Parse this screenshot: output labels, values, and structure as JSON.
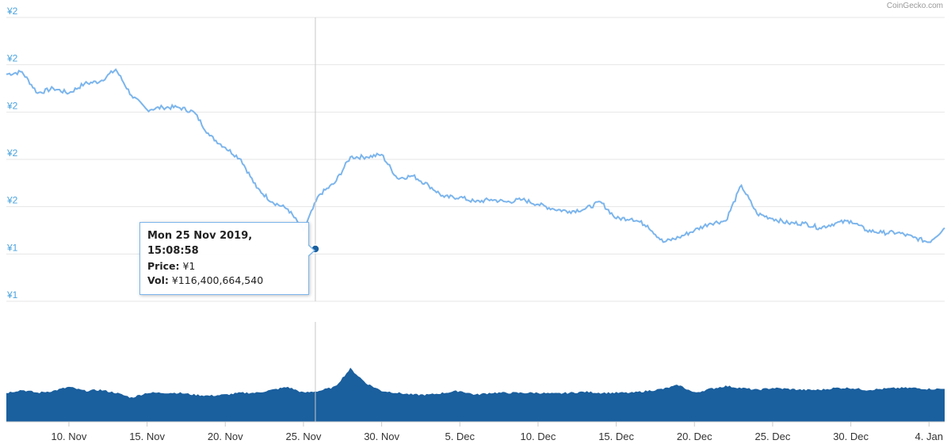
{
  "credit": "CoinGecko.com",
  "tooltip": {
    "date": "Mon 25 Nov 2019, 15:08:58",
    "price_label": "Price:",
    "price_value": "¥1",
    "vol_label": "Vol:",
    "vol_value": "¥116,400,664,540"
  },
  "colors": {
    "price_line": "#7cb5ec",
    "volume": "#1a5f9e",
    "marker": "#1a5f9e",
    "grid": "#e6e6e6",
    "ytick": "#4aa3df"
  },
  "chart_data": {
    "type": "line",
    "title": "",
    "xlabel": "",
    "ylabel": "",
    "grid": true,
    "y_tick_labels": [
      "¥2",
      "¥2",
      "¥2",
      "¥2",
      "¥2",
      "¥1",
      "¥1"
    ],
    "x_tick_labels": [
      "10. Nov",
      "15. Nov",
      "20. Nov",
      "25. Nov",
      "30. Nov",
      "5. Dec",
      "10. Dec",
      "15. Dec",
      "20. Dec",
      "25. Dec",
      "30. Dec",
      "4. Jan"
    ],
    "x_range": [
      "2019-11-06",
      "2020-01-05"
    ],
    "price_ylim": [
      1.0,
      2.2
    ],
    "series": [
      {
        "kind": "price",
        "x": [
          "2019-11-06",
          "2019-11-07",
          "2019-11-08",
          "2019-11-09",
          "2019-11-10",
          "2019-11-11",
          "2019-11-12",
          "2019-11-13",
          "2019-11-14",
          "2019-11-15",
          "2019-11-16",
          "2019-11-17",
          "2019-11-18",
          "2019-11-19",
          "2019-11-20",
          "2019-11-21",
          "2019-11-22",
          "2019-11-23",
          "2019-11-24",
          "2019-11-25",
          "2019-11-26",
          "2019-11-27",
          "2019-11-28",
          "2019-11-29",
          "2019-11-30",
          "2019-12-01",
          "2019-12-02",
          "2019-12-03",
          "2019-12-04",
          "2019-12-05",
          "2019-12-06",
          "2019-12-07",
          "2019-12-08",
          "2019-12-09",
          "2019-12-10",
          "2019-12-11",
          "2019-12-12",
          "2019-12-13",
          "2019-12-14",
          "2019-12-15",
          "2019-12-16",
          "2019-12-17",
          "2019-12-18",
          "2019-12-19",
          "2019-12-20",
          "2019-12-21",
          "2019-12-22",
          "2019-12-23",
          "2019-12-24",
          "2019-12-25",
          "2019-12-26",
          "2019-12-27",
          "2019-12-28",
          "2019-12-29",
          "2019-12-30",
          "2019-12-31",
          "2020-01-01",
          "2020-01-02",
          "2020-01-03",
          "2020-01-04",
          "2020-01-05"
        ],
        "values": [
          1.96,
          1.97,
          1.88,
          1.9,
          1.88,
          1.92,
          1.93,
          1.98,
          1.87,
          1.81,
          1.82,
          1.82,
          1.8,
          1.7,
          1.65,
          1.6,
          1.48,
          1.42,
          1.39,
          1.3,
          1.45,
          1.5,
          1.61,
          1.61,
          1.62,
          1.52,
          1.53,
          1.49,
          1.44,
          1.44,
          1.42,
          1.43,
          1.42,
          1.43,
          1.41,
          1.39,
          1.38,
          1.39,
          1.42,
          1.35,
          1.35,
          1.32,
          1.25,
          1.27,
          1.3,
          1.33,
          1.34,
          1.49,
          1.37,
          1.35,
          1.33,
          1.33,
          1.31,
          1.33,
          1.34,
          1.3,
          1.29,
          1.29,
          1.27,
          1.25,
          1.31
        ]
      },
      {
        "kind": "volume",
        "x": [
          "2019-11-06",
          "2019-11-07",
          "2019-11-08",
          "2019-11-09",
          "2019-11-10",
          "2019-11-11",
          "2019-11-12",
          "2019-11-13",
          "2019-11-14",
          "2019-11-15",
          "2019-11-16",
          "2019-11-17",
          "2019-11-18",
          "2019-11-19",
          "2019-11-20",
          "2019-11-21",
          "2019-11-22",
          "2019-11-23",
          "2019-11-24",
          "2019-11-25",
          "2019-11-26",
          "2019-11-27",
          "2019-11-28",
          "2019-11-29",
          "2019-11-30",
          "2019-12-01",
          "2019-12-02",
          "2019-12-03",
          "2019-12-04",
          "2019-12-05",
          "2019-12-06",
          "2019-12-07",
          "2019-12-08",
          "2019-12-09",
          "2019-12-10",
          "2019-12-11",
          "2019-12-12",
          "2019-12-13",
          "2019-12-14",
          "2019-12-15",
          "2019-12-16",
          "2019-12-17",
          "2019-12-18",
          "2019-12-19",
          "2019-12-20",
          "2019-12-21",
          "2019-12-22",
          "2019-12-23",
          "2019-12-24",
          "2019-12-25",
          "2019-12-26",
          "2019-12-27",
          "2019-12-28",
          "2019-12-29",
          "2019-12-30",
          "2019-12-31",
          "2020-01-01",
          "2020-01-02",
          "2020-01-03",
          "2020-01-04",
          "2020-01-05"
        ],
        "relative_values": [
          0.3,
          0.33,
          0.3,
          0.32,
          0.36,
          0.32,
          0.33,
          0.3,
          0.25,
          0.3,
          0.3,
          0.3,
          0.28,
          0.27,
          0.28,
          0.3,
          0.3,
          0.33,
          0.36,
          0.3,
          0.32,
          0.36,
          0.55,
          0.4,
          0.32,
          0.3,
          0.28,
          0.28,
          0.3,
          0.32,
          0.28,
          0.3,
          0.3,
          0.3,
          0.3,
          0.29,
          0.3,
          0.31,
          0.3,
          0.3,
          0.3,
          0.32,
          0.34,
          0.38,
          0.3,
          0.34,
          0.37,
          0.35,
          0.33,
          0.35,
          0.34,
          0.33,
          0.33,
          0.35,
          0.35,
          0.33,
          0.34,
          0.35,
          0.35,
          0.34,
          0.34
        ]
      }
    ]
  }
}
